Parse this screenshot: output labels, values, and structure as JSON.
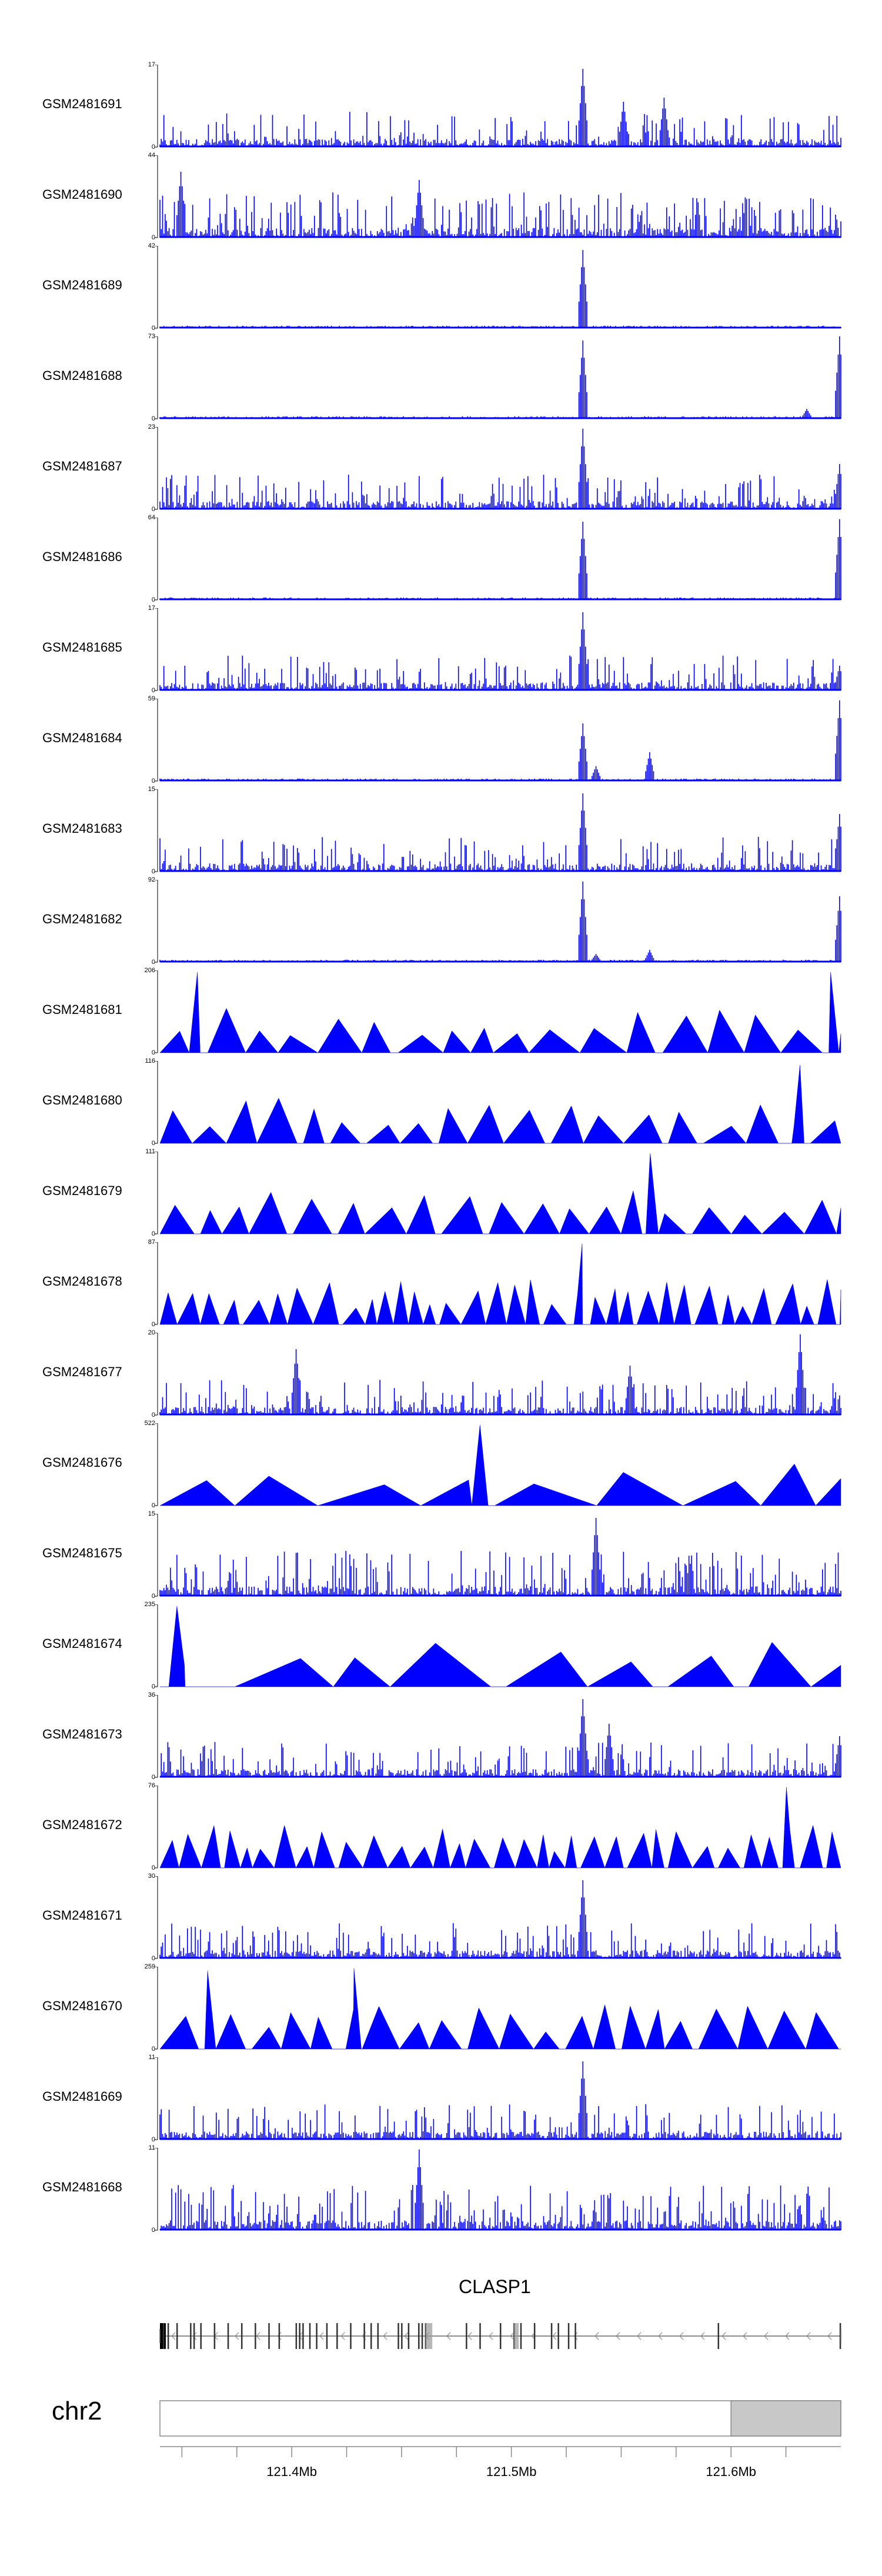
{
  "chart_data": {
    "type": "area",
    "color": "#0000ff",
    "tracks": [
      {
        "name": "GSM2481691",
        "ymax": 17,
        "ymin": 0,
        "profile": "noise-dense",
        "peaks": [
          [
            0.622,
            0.95
          ],
          [
            0.68,
            0.55
          ],
          [
            0.74,
            0.6
          ]
        ]
      },
      {
        "name": "GSM2481690",
        "ymax": 44,
        "ymin": 0,
        "profile": "spiky",
        "peaks": [
          [
            0.03,
            0.8
          ],
          [
            0.38,
            0.7
          ]
        ]
      },
      {
        "name": "GSM2481689",
        "ymax": 42,
        "ymin": 0,
        "profile": "flat",
        "peaks": [
          [
            0.622,
            0.95
          ]
        ]
      },
      {
        "name": "GSM2481688",
        "ymax": 73,
        "ymin": 0,
        "profile": "flat",
        "peaks": [
          [
            0.622,
            0.95
          ],
          [
            0.999,
            1.0
          ],
          [
            0.95,
            0.12
          ]
        ]
      },
      {
        "name": "GSM2481687",
        "ymax": 23,
        "ymin": 0,
        "profile": "noise-dense",
        "peaks": [
          [
            0.622,
            0.98
          ],
          [
            0.999,
            0.55
          ]
        ]
      },
      {
        "name": "GSM2481686",
        "ymax": 64,
        "ymin": 0,
        "profile": "flat",
        "peaks": [
          [
            0.622,
            0.95
          ],
          [
            0.999,
            0.98
          ]
        ]
      },
      {
        "name": "GSM2481685",
        "ymax": 17,
        "ymin": 0,
        "profile": "noise-dense",
        "peaks": [
          [
            0.622,
            0.95
          ],
          [
            0.999,
            0.3
          ]
        ]
      },
      {
        "name": "GSM2481684",
        "ymax": 59,
        "ymin": 0,
        "profile": "flat",
        "peaks": [
          [
            0.622,
            0.7
          ],
          [
            0.64,
            0.18
          ],
          [
            0.72,
            0.35
          ],
          [
            0.999,
            0.98
          ]
        ]
      },
      {
        "name": "GSM2481683",
        "ymax": 15,
        "ymin": 0,
        "profile": "noise-dense",
        "peaks": [
          [
            0.622,
            0.95
          ],
          [
            0.999,
            0.7
          ]
        ]
      },
      {
        "name": "GSM2481682",
        "ymax": 92,
        "ymin": 0,
        "profile": "flat",
        "peaks": [
          [
            0.622,
            0.98
          ],
          [
            0.64,
            0.1
          ],
          [
            0.72,
            0.15
          ],
          [
            0.999,
            0.8
          ]
        ]
      },
      {
        "name": "GSM2481681",
        "ymax": 206,
        "ymin": 0,
        "profile": "triangles-sparse",
        "peaks": [
          [
            0.055,
            0.98
          ],
          [
            0.985,
            0.98
          ]
        ]
      },
      {
        "name": "GSM2481680",
        "ymax": 116,
        "ymin": 0,
        "profile": "triangles",
        "peaks": [
          [
            0.94,
            0.95
          ]
        ]
      },
      {
        "name": "GSM2481679",
        "ymax": 111,
        "ymin": 0,
        "profile": "triangles",
        "peaks": [
          [
            0.72,
            0.98
          ]
        ]
      },
      {
        "name": "GSM2481678",
        "ymax": 87,
        "ymin": 0,
        "profile": "triangles-dense",
        "peaks": [
          [
            0.62,
            0.98
          ]
        ]
      },
      {
        "name": "GSM2481677",
        "ymax": 20,
        "ymin": 0,
        "profile": "noise-dense",
        "peaks": [
          [
            0.2,
            0.8
          ],
          [
            0.69,
            0.6
          ],
          [
            0.94,
            0.98
          ]
        ]
      },
      {
        "name": "GSM2481676",
        "ymax": 522,
        "ymin": 0,
        "profile": "triangles-big",
        "peaks": [
          [
            0.47,
            0.98
          ]
        ]
      },
      {
        "name": "GSM2481675",
        "ymax": 15,
        "ymin": 0,
        "profile": "spiky",
        "peaks": [
          [
            0.64,
            0.95
          ]
        ]
      },
      {
        "name": "GSM2481674",
        "ymax": 235,
        "ymin": 0,
        "profile": "triangles-big",
        "peaks": [
          [
            0.025,
            0.98
          ]
        ]
      },
      {
        "name": "GSM2481673",
        "ymax": 36,
        "ymin": 0,
        "profile": "noise-dense",
        "peaks": [
          [
            0.622,
            0.95
          ],
          [
            0.66,
            0.65
          ],
          [
            0.999,
            0.5
          ]
        ]
      },
      {
        "name": "GSM2481672",
        "ymax": 76,
        "ymin": 0,
        "profile": "triangles-dense",
        "peaks": [
          [
            0.92,
            0.98
          ]
        ]
      },
      {
        "name": "GSM2481671",
        "ymax": 30,
        "ymin": 0,
        "profile": "noise-dense",
        "peaks": [
          [
            0.622,
            0.95
          ]
        ]
      },
      {
        "name": "GSM2481670",
        "ymax": 259,
        "ymin": 0,
        "profile": "triangles",
        "peaks": [
          [
            0.07,
            0.95
          ],
          [
            0.285,
            0.98
          ]
        ]
      },
      {
        "name": "GSM2481669",
        "ymax": 11,
        "ymin": 0,
        "profile": "noise-dense",
        "peaks": [
          [
            0.622,
            0.95
          ]
        ]
      },
      {
        "name": "GSM2481668",
        "ymax": 11,
        "ymin": 0,
        "profile": "spiky",
        "peaks": [
          [
            0.38,
            0.98
          ]
        ]
      }
    ],
    "gene": {
      "name": "CLASP1",
      "strand": "-",
      "exons": [
        0.0,
        0.005,
        0.012,
        0.025,
        0.045,
        0.05,
        0.06,
        0.08,
        0.1,
        0.12,
        0.14,
        0.16,
        0.175,
        0.2,
        0.205,
        0.21,
        0.22,
        0.23,
        0.245,
        0.26,
        0.28,
        0.3,
        0.31,
        0.32,
        0.35,
        0.355,
        0.365,
        0.38,
        0.385,
        0.39,
        0.45,
        0.47,
        0.5,
        0.52,
        0.53,
        0.55,
        0.575,
        0.585,
        0.6,
        0.61,
        0.82,
        0.999
      ]
    },
    "axis": {
      "chromosome": "chr2",
      "xlim": [
        121.34,
        121.65
      ],
      "tick_labels": [
        "121.4Mb",
        "121.5Mb",
        "121.6Mb"
      ],
      "tick_values": [
        121.4,
        121.5,
        121.6
      ],
      "minor_ticks": [
        121.35,
        121.375,
        121.4,
        121.425,
        121.45,
        121.475,
        121.5,
        121.525,
        121.55,
        121.575,
        121.6,
        121.625
      ],
      "highlight_range": [
        121.6,
        121.65
      ]
    }
  }
}
